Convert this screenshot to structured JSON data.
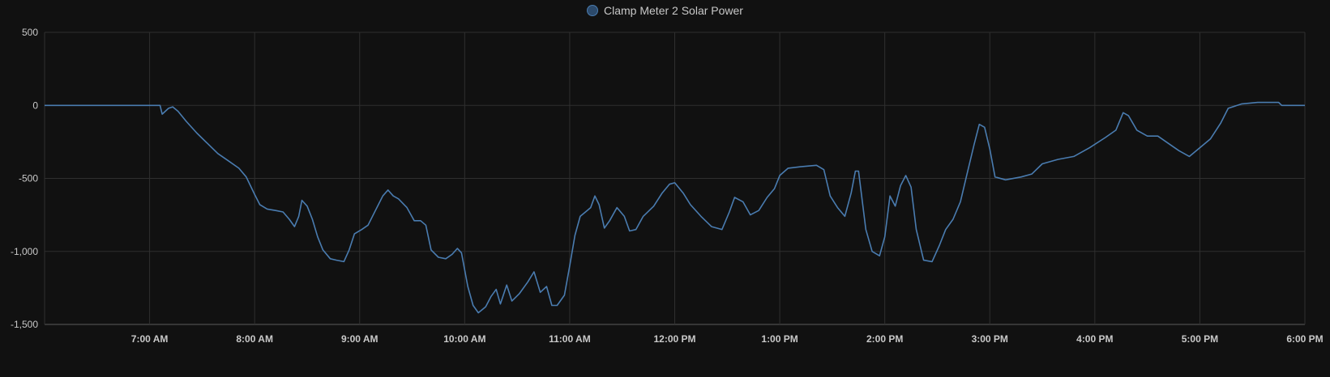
{
  "chart_data": {
    "type": "line",
    "title": "",
    "xlabel": "",
    "ylabel": "",
    "legend_position": "top-center",
    "grid": true,
    "colors": {
      "background": "#111111",
      "grid": "#2f2f2f",
      "series": "#4a7cb0",
      "tick_text": "#c9c9c9"
    },
    "xlim": [
      6.0,
      18.0
    ],
    "ylim": [
      -1500,
      500
    ],
    "x_tick_values": [
      7,
      8,
      9,
      10,
      11,
      12,
      13,
      14,
      15,
      16,
      17,
      18
    ],
    "x_tick_labels": [
      "7:00 AM",
      "8:00 AM",
      "9:00 AM",
      "10:00 AM",
      "11:00 AM",
      "12:00 PM",
      "1:00 PM",
      "2:00 PM",
      "3:00 PM",
      "4:00 PM",
      "5:00 PM",
      "6:00 PM"
    ],
    "y_tick_values": [
      500,
      0,
      -500,
      -1000,
      -1500
    ],
    "y_tick_labels": [
      "500",
      "0",
      "-500",
      "-1,000",
      "-1,500"
    ],
    "series": [
      {
        "name": "Clamp Meter 2 Solar Power",
        "x_unit": "hour of day",
        "points": [
          [
            6.0,
            0
          ],
          [
            7.1,
            0
          ],
          [
            7.12,
            -60
          ],
          [
            7.18,
            -20
          ],
          [
            7.22,
            -10
          ],
          [
            7.27,
            -40
          ],
          [
            7.35,
            -110
          ],
          [
            7.45,
            -190
          ],
          [
            7.55,
            -260
          ],
          [
            7.65,
            -330
          ],
          [
            7.75,
            -380
          ],
          [
            7.85,
            -430
          ],
          [
            7.92,
            -490
          ],
          [
            8.0,
            -610
          ],
          [
            8.05,
            -680
          ],
          [
            8.12,
            -710
          ],
          [
            8.2,
            -720
          ],
          [
            8.27,
            -730
          ],
          [
            8.33,
            -780
          ],
          [
            8.38,
            -830
          ],
          [
            8.42,
            -760
          ],
          [
            8.45,
            -650
          ],
          [
            8.5,
            -690
          ],
          [
            8.55,
            -780
          ],
          [
            8.6,
            -900
          ],
          [
            8.65,
            -990
          ],
          [
            8.72,
            -1050
          ],
          [
            8.78,
            -1060
          ],
          [
            8.85,
            -1070
          ],
          [
            8.9,
            -990
          ],
          [
            8.95,
            -880
          ],
          [
            9.02,
            -850
          ],
          [
            9.08,
            -820
          ],
          [
            9.15,
            -720
          ],
          [
            9.22,
            -620
          ],
          [
            9.27,
            -580
          ],
          [
            9.32,
            -620
          ],
          [
            9.37,
            -640
          ],
          [
            9.45,
            -700
          ],
          [
            9.52,
            -790
          ],
          [
            9.58,
            -790
          ],
          [
            9.63,
            -820
          ],
          [
            9.68,
            -990
          ],
          [
            9.75,
            -1040
          ],
          [
            9.82,
            -1050
          ],
          [
            9.88,
            -1020
          ],
          [
            9.93,
            -980
          ],
          [
            9.97,
            -1010
          ],
          [
            10.03,
            -1240
          ],
          [
            10.08,
            -1370
          ],
          [
            10.13,
            -1420
          ],
          [
            10.2,
            -1380
          ],
          [
            10.25,
            -1310
          ],
          [
            10.3,
            -1260
          ],
          [
            10.34,
            -1360
          ],
          [
            10.4,
            -1230
          ],
          [
            10.45,
            -1340
          ],
          [
            10.52,
            -1290
          ],
          [
            10.6,
            -1210
          ],
          [
            10.66,
            -1140
          ],
          [
            10.72,
            -1280
          ],
          [
            10.78,
            -1240
          ],
          [
            10.83,
            -1370
          ],
          [
            10.88,
            -1370
          ],
          [
            10.95,
            -1300
          ],
          [
            11.0,
            -1100
          ],
          [
            11.05,
            -890
          ],
          [
            11.1,
            -760
          ],
          [
            11.15,
            -730
          ],
          [
            11.2,
            -700
          ],
          [
            11.24,
            -620
          ],
          [
            11.28,
            -680
          ],
          [
            11.33,
            -840
          ],
          [
            11.38,
            -790
          ],
          [
            11.45,
            -700
          ],
          [
            11.52,
            -760
          ],
          [
            11.57,
            -860
          ],
          [
            11.63,
            -850
          ],
          [
            11.7,
            -760
          ],
          [
            11.8,
            -690
          ],
          [
            11.88,
            -600
          ],
          [
            11.95,
            -540
          ],
          [
            12.0,
            -530
          ],
          [
            12.08,
            -600
          ],
          [
            12.15,
            -680
          ],
          [
            12.25,
            -760
          ],
          [
            12.35,
            -830
          ],
          [
            12.45,
            -850
          ],
          [
            12.52,
            -730
          ],
          [
            12.57,
            -630
          ],
          [
            12.65,
            -660
          ],
          [
            12.72,
            -750
          ],
          [
            12.8,
            -720
          ],
          [
            12.88,
            -630
          ],
          [
            12.95,
            -570
          ],
          [
            13.0,
            -480
          ],
          [
            13.08,
            -430
          ],
          [
            13.2,
            -420
          ],
          [
            13.35,
            -410
          ],
          [
            13.42,
            -440
          ],
          [
            13.48,
            -620
          ],
          [
            13.55,
            -700
          ],
          [
            13.62,
            -760
          ],
          [
            13.68,
            -600
          ],
          [
            13.72,
            -450
          ],
          [
            13.75,
            -450
          ],
          [
            13.82,
            -850
          ],
          [
            13.88,
            -1000
          ],
          [
            13.95,
            -1030
          ],
          [
            14.0,
            -900
          ],
          [
            14.05,
            -620
          ],
          [
            14.1,
            -690
          ],
          [
            14.15,
            -550
          ],
          [
            14.2,
            -480
          ],
          [
            14.25,
            -560
          ],
          [
            14.3,
            -850
          ],
          [
            14.37,
            -1060
          ],
          [
            14.45,
            -1070
          ],
          [
            14.52,
            -960
          ],
          [
            14.58,
            -850
          ],
          [
            14.65,
            -780
          ],
          [
            14.72,
            -660
          ],
          [
            14.78,
            -480
          ],
          [
            14.85,
            -270
          ],
          [
            14.9,
            -130
          ],
          [
            14.95,
            -150
          ],
          [
            15.0,
            -300
          ],
          [
            15.05,
            -490
          ],
          [
            15.15,
            -510
          ],
          [
            15.3,
            -490
          ],
          [
            15.4,
            -470
          ],
          [
            15.5,
            -400
          ],
          [
            15.65,
            -370
          ],
          [
            15.8,
            -350
          ],
          [
            15.95,
            -290
          ],
          [
            16.1,
            -220
          ],
          [
            16.2,
            -170
          ],
          [
            16.27,
            -50
          ],
          [
            16.32,
            -70
          ],
          [
            16.4,
            -170
          ],
          [
            16.5,
            -210
          ],
          [
            16.6,
            -210
          ],
          [
            16.7,
            -260
          ],
          [
            16.8,
            -310
          ],
          [
            16.9,
            -350
          ],
          [
            17.0,
            -290
          ],
          [
            17.1,
            -230
          ],
          [
            17.2,
            -120
          ],
          [
            17.27,
            -20
          ],
          [
            17.4,
            10
          ],
          [
            17.55,
            20
          ],
          [
            17.75,
            20
          ],
          [
            17.78,
            0
          ],
          [
            18.0,
            0
          ]
        ]
      }
    ]
  }
}
